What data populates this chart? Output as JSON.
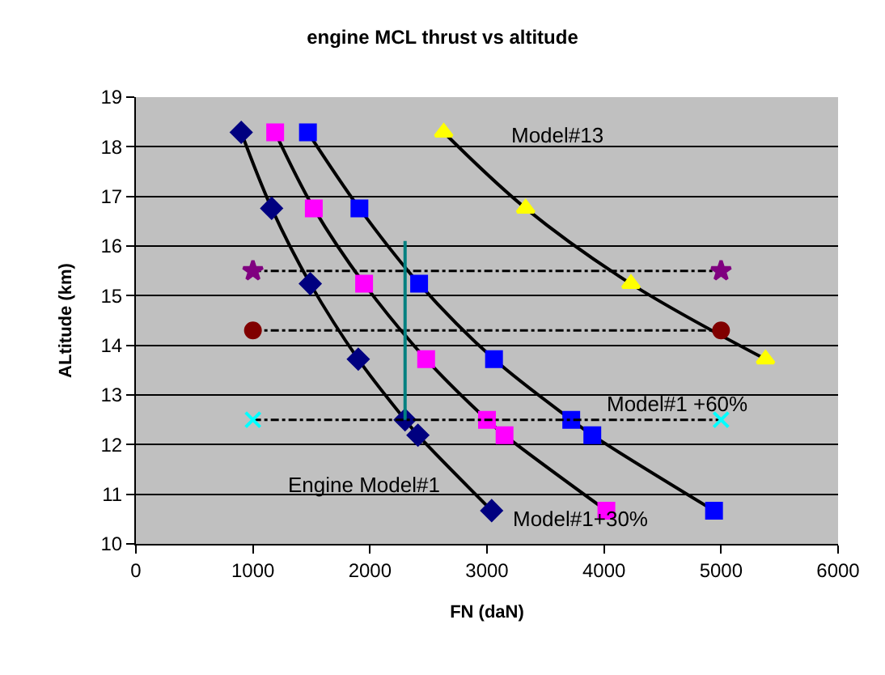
{
  "chart_data": {
    "type": "line",
    "title": "engine MCL thrust vs altitude",
    "xlabel": "FN (daN)",
    "ylabel": "ALtitude (km)",
    "xlim": [
      0,
      6000
    ],
    "xticks": [
      0,
      1000,
      2000,
      3000,
      4000,
      5000,
      6000
    ],
    "ylim": [
      10,
      19
    ],
    "yticks": [
      10,
      11,
      12,
      13,
      14,
      15,
      16,
      17,
      18,
      19
    ],
    "grid": "y",
    "legend": false,
    "series": [
      {
        "name": "Engine Model#1",
        "color": "#000080",
        "marker": "diamond",
        "line_style": "solid",
        "x": [
          900,
          1160,
          1490,
          1900,
          2300,
          2410,
          3040
        ],
        "values": [
          18.29,
          16.76,
          15.24,
          13.72,
          12.5,
          12.19,
          10.67
        ]
      },
      {
        "name": "Model#1+30%",
        "color": "#ff00ff",
        "marker": "square",
        "line_style": "solid",
        "x": [
          1190,
          1520,
          1950,
          2480,
          3000,
          3150,
          4020
        ],
        "values": [
          18.29,
          16.76,
          15.24,
          13.72,
          12.5,
          12.19,
          10.67
        ]
      },
      {
        "name": "Model#1 +60%",
        "color": "#0000ff",
        "marker": "square",
        "line_style": "solid",
        "x": [
          1470,
          1910,
          2420,
          3060,
          3720,
          3900,
          4940
        ],
        "values": [
          18.29,
          16.76,
          15.24,
          13.72,
          12.5,
          12.19,
          10.67
        ]
      },
      {
        "name": "Model#13",
        "color": "#ffff00",
        "marker": "triangle",
        "line_style": "solid",
        "x": [
          2630,
          3330,
          4230,
          5380
        ],
        "values": [
          18.29,
          16.76,
          15.24,
          13.72
        ]
      },
      {
        "color": "#008080",
        "marker": "none",
        "line_style": "solid",
        "x": [
          2300,
          2300
        ],
        "values": [
          12.5,
          16.1
        ]
      },
      {
        "color": "#800080",
        "marker": "star",
        "line_style": "dashed",
        "x": [
          1000,
          5000
        ],
        "values": [
          15.5,
          15.5
        ]
      },
      {
        "color": "#800000",
        "marker": "circle",
        "line_style": "dashed",
        "x": [
          1000,
          5000
        ],
        "values": [
          14.3,
          14.3
        ]
      },
      {
        "color": "#00ffff",
        "marker": "cross",
        "line_style": "dashed",
        "x": [
          1000,
          5000
        ],
        "values": [
          12.5,
          12.5
        ]
      }
    ]
  }
}
